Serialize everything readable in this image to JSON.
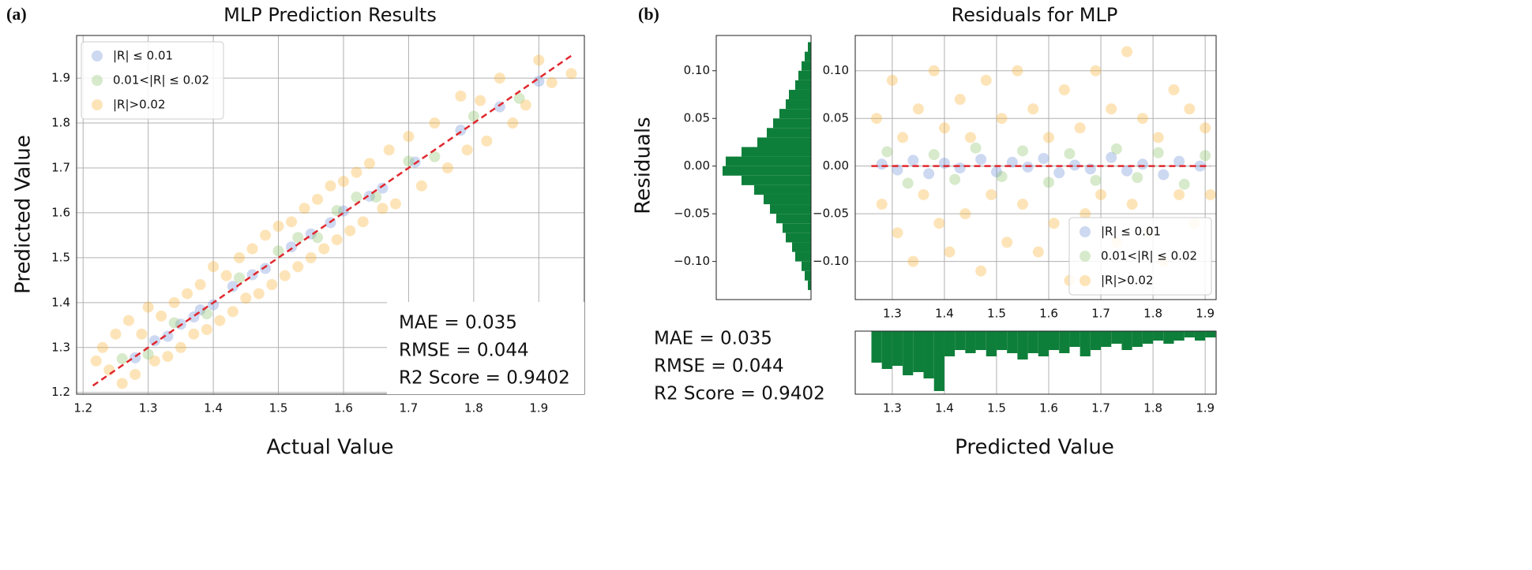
{
  "chart_data": [
    {
      "type": "scatter",
      "panel_label": "(a)",
      "title": "MLP Prediction Results",
      "xlabel": "Actual Value",
      "ylabel": "Predicted Value",
      "xlim": [
        1.19,
        1.97
      ],
      "ylim": [
        1.196,
        1.995
      ],
      "xticks": [
        1.2,
        1.3,
        1.4,
        1.5,
        1.6,
        1.7,
        1.8,
        1.9
      ],
      "yticks": [
        1.2,
        1.3,
        1.4,
        1.5,
        1.6,
        1.7,
        1.8,
        1.9
      ],
      "grid": true,
      "legend": "upper left",
      "series": [
        {
          "name": "|R| ≤ 0.01",
          "color": "#6f8fd6",
          "x": [
            1.28,
            1.31,
            1.33,
            1.35,
            1.37,
            1.38,
            1.4,
            1.43,
            1.46,
            1.48,
            1.52,
            1.55,
            1.58,
            1.6,
            1.64,
            1.66,
            1.71,
            1.78,
            1.84,
            1.9
          ],
          "y": [
            1.277,
            1.315,
            1.325,
            1.352,
            1.368,
            1.384,
            1.395,
            1.436,
            1.462,
            1.476,
            1.524,
            1.553,
            1.578,
            1.604,
            1.637,
            1.655,
            1.713,
            1.784,
            1.836,
            1.893
          ]
        },
        {
          "name": "0.01<|R| ≤ 0.02",
          "color": "#8cc46a",
          "x": [
            1.26,
            1.3,
            1.34,
            1.39,
            1.44,
            1.5,
            1.53,
            1.56,
            1.59,
            1.62,
            1.65,
            1.7,
            1.74,
            1.8,
            1.87
          ],
          "y": [
            1.275,
            1.285,
            1.355,
            1.375,
            1.455,
            1.515,
            1.545,
            1.545,
            1.605,
            1.635,
            1.635,
            1.715,
            1.725,
            1.815,
            1.855
          ]
        },
        {
          "name": "|R|>0.02",
          "color": "#f8b133",
          "x": [
            1.22,
            1.23,
            1.24,
            1.25,
            1.26,
            1.27,
            1.28,
            1.29,
            1.3,
            1.31,
            1.32,
            1.33,
            1.34,
            1.35,
            1.36,
            1.37,
            1.38,
            1.39,
            1.4,
            1.41,
            1.42,
            1.43,
            1.44,
            1.45,
            1.46,
            1.47,
            1.48,
            1.49,
            1.5,
            1.51,
            1.52,
            1.53,
            1.54,
            1.55,
            1.56,
            1.57,
            1.58,
            1.59,
            1.6,
            1.61,
            1.62,
            1.63,
            1.64,
            1.66,
            1.67,
            1.68,
            1.7,
            1.72,
            1.74,
            1.76,
            1.78,
            1.79,
            1.81,
            1.82,
            1.84,
            1.86,
            1.88,
            1.9,
            1.92,
            1.95
          ],
          "y": [
            1.27,
            1.3,
            1.25,
            1.33,
            1.22,
            1.36,
            1.24,
            1.33,
            1.39,
            1.27,
            1.37,
            1.28,
            1.4,
            1.3,
            1.42,
            1.33,
            1.44,
            1.34,
            1.48,
            1.36,
            1.46,
            1.38,
            1.5,
            1.41,
            1.52,
            1.42,
            1.55,
            1.44,
            1.57,
            1.46,
            1.58,
            1.48,
            1.61,
            1.5,
            1.63,
            1.52,
            1.66,
            1.54,
            1.67,
            1.56,
            1.69,
            1.58,
            1.71,
            1.61,
            1.74,
            1.62,
            1.77,
            1.66,
            1.8,
            1.7,
            1.86,
            1.74,
            1.85,
            1.76,
            1.9,
            1.8,
            1.84,
            1.94,
            1.89,
            1.91
          ]
        }
      ],
      "reference_line": {
        "color": "#e0282e",
        "x": [
          1.215,
          1.95
        ],
        "y": [
          1.215,
          1.95
        ]
      },
      "annotations": [
        "MAE = 0.035",
        "RMSE = 0.044",
        "R2 Score = 0.9402"
      ]
    },
    {
      "type": "scatter",
      "panel_label": "(b)",
      "title": "Residuals for MLP",
      "xlabel": "Predicted Value",
      "ylabel": "Residuals",
      "xlim": [
        1.229,
        1.921
      ],
      "ylim": [
        -0.14,
        0.137
      ],
      "xticks": [
        1.3,
        1.4,
        1.5,
        1.6,
        1.7,
        1.8,
        1.9
      ],
      "yticks": [
        {
          "value": -0.1,
          "label": "−0.10"
        },
        {
          "value": -0.05,
          "label": "−0.05"
        },
        {
          "value": 0,
          "label": "0.00"
        },
        {
          "value": 0.05,
          "label": "0.05"
        },
        {
          "value": 0.1,
          "label": "0.10"
        }
      ],
      "grid": true,
      "legend": "lower right",
      "series": [
        {
          "name": "|R| ≤ 0.01",
          "color": "#6f8fd6",
          "x": [
            1.28,
            1.31,
            1.34,
            1.37,
            1.4,
            1.43,
            1.47,
            1.5,
            1.53,
            1.56,
            1.59,
            1.62,
            1.65,
            1.68,
            1.72,
            1.75,
            1.78,
            1.82,
            1.85,
            1.89
          ],
          "y": [
            0.002,
            -0.004,
            0.006,
            -0.008,
            0.003,
            -0.002,
            0.007,
            -0.006,
            0.004,
            -0.001,
            0.008,
            -0.007,
            0.001,
            -0.003,
            0.009,
            -0.005,
            0.002,
            -0.009,
            0.005,
            0
          ]
        },
        {
          "name": "0.01<|R| ≤ 0.02",
          "color": "#8cc46a",
          "x": [
            1.29,
            1.33,
            1.38,
            1.42,
            1.46,
            1.51,
            1.55,
            1.6,
            1.64,
            1.69,
            1.73,
            1.77,
            1.81,
            1.86,
            1.9
          ],
          "y": [
            0.015,
            -0.018,
            0.012,
            -0.014,
            0.019,
            -0.011,
            0.016,
            -0.017,
            0.013,
            -0.015,
            0.018,
            -0.012,
            0.014,
            -0.019,
            0.011
          ]
        },
        {
          "name": "|R|>0.02",
          "color": "#f8b133",
          "x": [
            1.27,
            1.28,
            1.3,
            1.31,
            1.32,
            1.34,
            1.35,
            1.36,
            1.38,
            1.39,
            1.4,
            1.41,
            1.43,
            1.44,
            1.45,
            1.47,
            1.48,
            1.49,
            1.51,
            1.52,
            1.54,
            1.55,
            1.57,
            1.58,
            1.6,
            1.61,
            1.63,
            1.64,
            1.66,
            1.67,
            1.69,
            1.7,
            1.72,
            1.73,
            1.75,
            1.76,
            1.78,
            1.79,
            1.81,
            1.82,
            1.84,
            1.85,
            1.87,
            1.88,
            1.9,
            1.91
          ],
          "y": [
            0.05,
            -0.04,
            0.09,
            -0.07,
            0.03,
            -0.1,
            0.06,
            -0.03,
            0.1,
            -0.06,
            0.04,
            -0.09,
            0.07,
            -0.05,
            0.03,
            -0.11,
            0.09,
            -0.03,
            0.05,
            -0.08,
            0.1,
            -0.04,
            0.06,
            -0.09,
            0.03,
            -0.06,
            0.08,
            -0.12,
            0.04,
            -0.05,
            0.1,
            -0.03,
            0.06,
            -0.08,
            0.12,
            -0.04,
            0.05,
            -0.07,
            0.03,
            -0.1,
            0.08,
            -0.03,
            0.06,
            -0.06,
            0.04,
            -0.03
          ]
        }
      ],
      "reference_line": {
        "color": "#e0282e",
        "x": [
          1.26,
          1.91
        ],
        "y": [
          0,
          0
        ]
      },
      "annotations": [
        "MAE = 0.035",
        "RMSE = 0.044",
        "R2 Score = 0.9402"
      ]
    },
    {
      "type": "hist-horizontal",
      "color": "#0e7f3a",
      "xlim": [
        0,
        30
      ],
      "ylim": [
        -0.14,
        0.137
      ],
      "yticks": [
        {
          "value": -0.1,
          "label": "−0.10"
        },
        {
          "value": -0.05,
          "label": "−0.05"
        },
        {
          "value": 0,
          "label": "0.00"
        },
        {
          "value": 0.05,
          "label": "0.05"
        },
        {
          "value": 0.1,
          "label": "0.10"
        }
      ],
      "bins": [
        -0.13,
        -0.12,
        -0.11,
        -0.1,
        -0.09,
        -0.08,
        -0.07,
        -0.06,
        -0.05,
        -0.04,
        -0.03,
        -0.02,
        -0.01,
        0,
        0.01,
        0.02,
        0.03,
        0.04,
        0.05,
        0.06,
        0.07,
        0.08,
        0.09,
        0.1,
        0.11,
        0.12,
        0.13
      ],
      "counts": [
        1,
        2,
        3,
        5,
        6,
        8,
        9,
        11,
        13,
        15,
        18,
        22,
        28,
        27,
        22,
        17,
        14,
        12,
        10,
        8,
        7,
        5,
        4,
        3,
        2,
        1
      ]
    },
    {
      "type": "hist-down",
      "color": "#0e7f3a",
      "xlim": [
        1.229,
        1.921
      ],
      "ylim": [
        0,
        20
      ],
      "xticks": [
        1.3,
        1.4,
        1.5,
        1.6,
        1.7,
        1.8,
        1.9
      ],
      "grid": true,
      "bins": [
        1.26,
        1.28,
        1.3,
        1.32,
        1.34,
        1.36,
        1.38,
        1.4,
        1.42,
        1.44,
        1.46,
        1.48,
        1.5,
        1.52,
        1.54,
        1.56,
        1.58,
        1.6,
        1.62,
        1.64,
        1.66,
        1.68,
        1.7,
        1.72,
        1.74,
        1.76,
        1.78,
        1.8,
        1.82,
        1.84,
        1.86,
        1.88,
        1.9,
        1.92
      ],
      "counts": [
        10,
        12,
        11,
        14,
        13,
        15,
        19,
        8,
        6,
        7,
        6,
        8,
        6,
        7,
        9,
        7,
        8,
        6,
        7,
        5,
        8,
        6,
        5,
        4,
        6,
        5,
        4,
        3,
        4,
        3,
        2,
        3,
        2
      ]
    }
  ]
}
